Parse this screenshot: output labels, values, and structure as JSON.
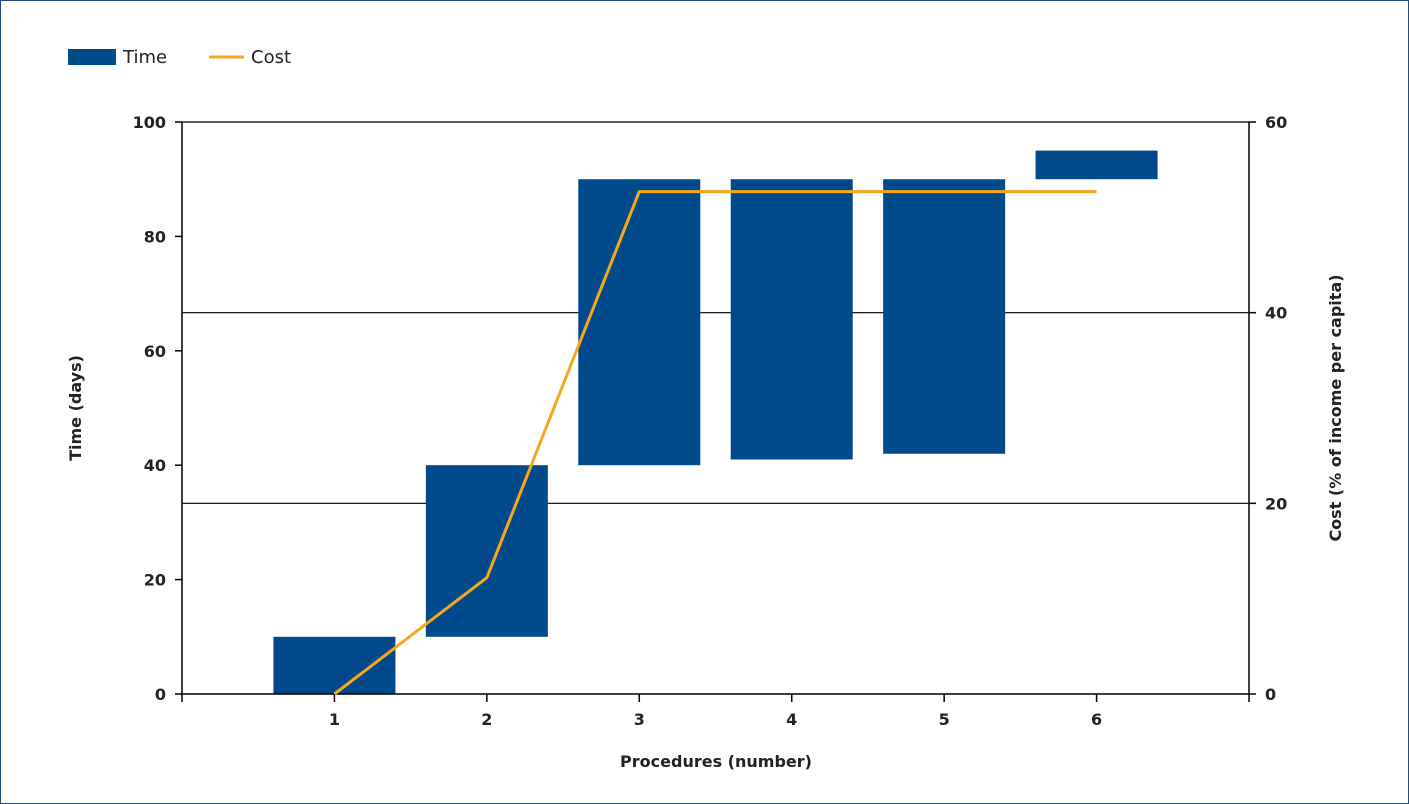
{
  "chart_data": {
    "type": "bar",
    "subtype": "floating-bar-with-line",
    "title": "",
    "xlabel": "Procedures (number)",
    "ylabel_left": "Time (days)",
    "ylabel_right": "Cost (% of income per capita)",
    "x": [
      1,
      2,
      3,
      4,
      5,
      6
    ],
    "xlim": [
      0,
      7
    ],
    "ylim_left": [
      0,
      100
    ],
    "ylim_right": [
      0,
      60
    ],
    "yticks_left": [
      0,
      20,
      40,
      60,
      80,
      100
    ],
    "yticks_right": [
      0,
      20,
      40,
      60
    ],
    "gridlines_right": [
      20,
      40
    ],
    "legend_position": "top-left",
    "series": [
      {
        "name": "Time",
        "kind": "floating-bar",
        "axis": "left",
        "color": "#004a8b",
        "ranges": [
          [
            0,
            10
          ],
          [
            10,
            40
          ],
          [
            40,
            90
          ],
          [
            41,
            90
          ],
          [
            42,
            90
          ],
          [
            90,
            95
          ]
        ]
      },
      {
        "name": "Cost",
        "kind": "line",
        "axis": "right",
        "color": "#f5a81c",
        "values": [
          0,
          12.2,
          52.7,
          52.7,
          52.7,
          52.7
        ]
      }
    ]
  }
}
